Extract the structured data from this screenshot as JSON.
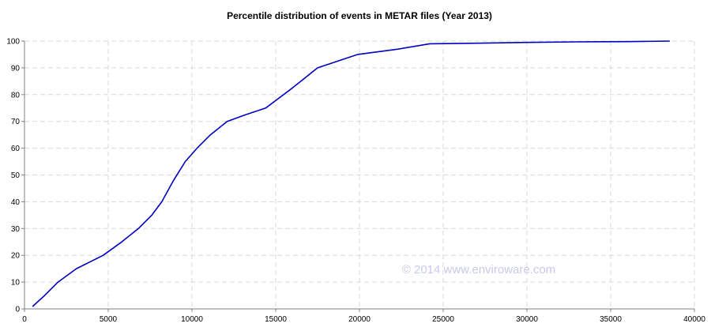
{
  "chart_data": {
    "type": "line",
    "title": "Percentile distribution of events in METAR files (Year 2013)",
    "xlabel": "",
    "ylabel": "",
    "xlim": [
      0,
      40000
    ],
    "ylim": [
      0,
      100
    ],
    "x_ticks": [
      0,
      5000,
      10000,
      15000,
      20000,
      25000,
      30000,
      35000,
      40000
    ],
    "y_ticks": [
      0,
      10,
      20,
      30,
      40,
      50,
      60,
      70,
      80,
      90,
      100
    ],
    "grid": true,
    "watermark": "© 2014 www.enviroware.com",
    "line_color": "#0000c0",
    "series": [
      {
        "x": [
          500,
          1200,
          2000,
          3100,
          4700,
          5800,
          6800,
          7600,
          8200,
          8900,
          9600,
          10300,
          11100,
          12100,
          13200,
          14400,
          16000,
          17500,
          19900,
          22300,
          24200,
          27000,
          30000,
          33000,
          36000,
          38500
        ],
        "y": [
          1,
          5,
          10,
          15,
          20,
          25,
          30,
          35,
          40,
          48,
          55,
          60,
          65,
          70,
          72.5,
          75,
          82.5,
          90,
          95,
          97,
          99,
          99.2,
          99.5,
          99.7,
          99.8,
          100
        ]
      }
    ]
  }
}
